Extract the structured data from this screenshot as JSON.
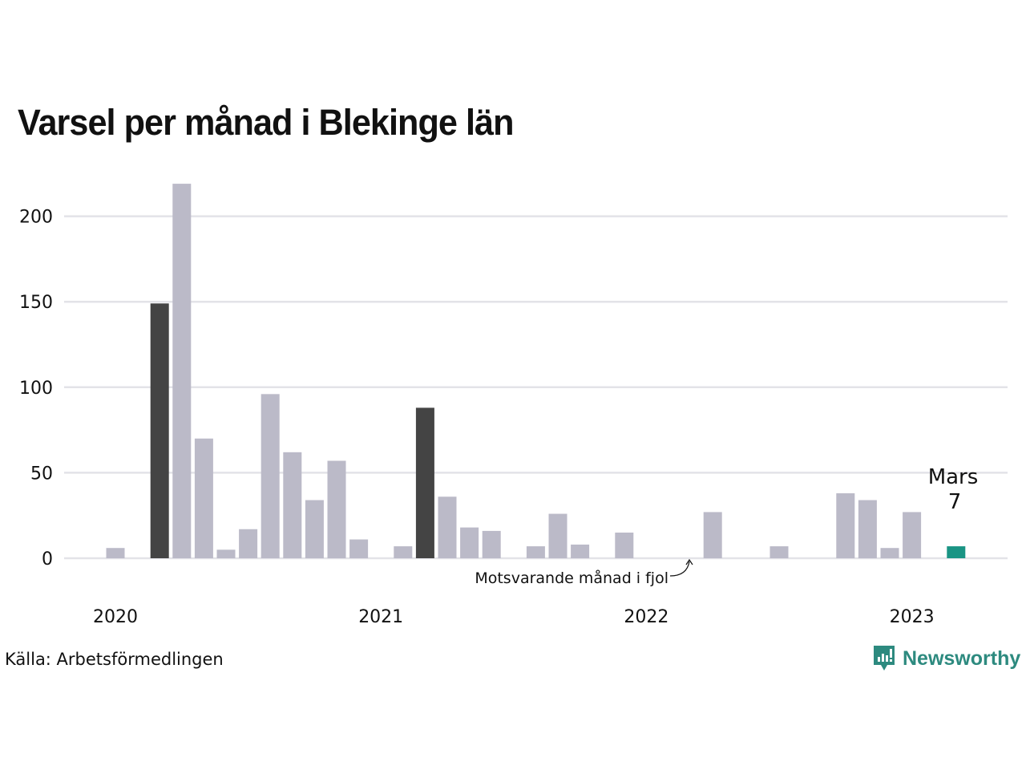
{
  "chart_data": {
    "type": "bar",
    "title": "Varsel per månad i Blekinge län",
    "xlabel": "",
    "ylabel": "",
    "ylim": [
      0,
      220
    ],
    "yticks": [
      0,
      50,
      100,
      150,
      200
    ],
    "xtick_labels": [
      "2020",
      "2021",
      "2022",
      "2023"
    ],
    "grid": true,
    "categories": [
      "2020-01",
      "2020-02",
      "2020-03",
      "2020-04",
      "2020-05",
      "2020-06",
      "2020-07",
      "2020-08",
      "2020-09",
      "2020-10",
      "2020-11",
      "2020-12",
      "2021-01",
      "2021-02",
      "2021-03",
      "2021-04",
      "2021-05",
      "2021-06",
      "2021-07",
      "2021-08",
      "2021-09",
      "2021-10",
      "2021-11",
      "2021-12",
      "2022-01",
      "2022-02",
      "2022-03",
      "2022-04",
      "2022-05",
      "2022-06",
      "2022-07",
      "2022-08",
      "2022-09",
      "2022-10",
      "2022-11",
      "2022-12",
      "2023-01",
      "2023-02",
      "2023-03"
    ],
    "values": [
      6,
      0,
      149,
      219,
      70,
      5,
      17,
      96,
      62,
      34,
      57,
      11,
      0,
      7,
      88,
      36,
      18,
      16,
      0,
      7,
      26,
      8,
      0,
      15,
      0,
      0,
      0,
      27,
      0,
      0,
      7,
      0,
      0,
      38,
      34,
      6,
      27,
      0,
      7
    ],
    "highlighted_same_month": [
      "2020-03",
      "2021-03",
      "2022-03"
    ],
    "current": "2023-03",
    "colors": {
      "default": "#bbbac8",
      "same_month": "#444444",
      "current": "#1a9484",
      "grid": "#e3e3e8"
    },
    "annotations": {
      "current_month_label": "Mars",
      "current_value_label": "7",
      "last_year_label": "Motsvarande månad i fjol"
    }
  },
  "footer": {
    "source": "Källa: Arbetsförmedlingen",
    "brand": "Newsworthy",
    "brand_icon": "newsworthy-logo-icon"
  }
}
